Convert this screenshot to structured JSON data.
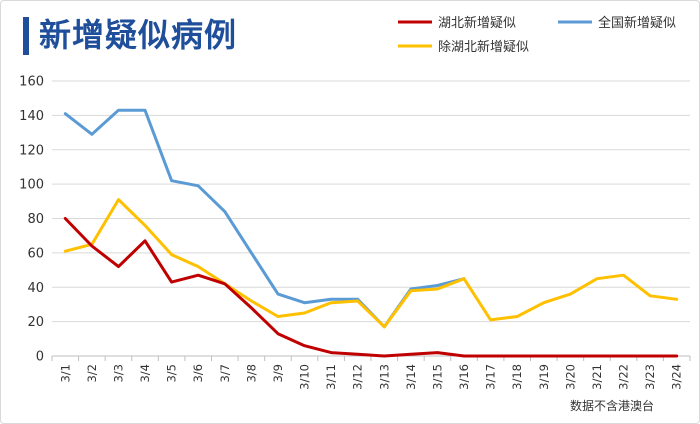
{
  "chart_data": {
    "type": "line",
    "title": "新增疑似病例",
    "note": "数据不含港澳台",
    "ylim": [
      0,
      160
    ],
    "yticks": [
      "0",
      "20",
      "40",
      "60",
      "80",
      "100",
      "120",
      "140",
      "160"
    ],
    "categories": [
      "3/1",
      "3/2",
      "3/3",
      "3/4",
      "3/5",
      "3/6",
      "3/7",
      "3/8",
      "3/9",
      "3/10",
      "3/11",
      "3/12",
      "3/13",
      "3/14",
      "3/15",
      "3/16",
      "3/17",
      "3/18",
      "3/19",
      "3/20",
      "3/21",
      "3/22",
      "3/23",
      "3/24"
    ],
    "legend_position": "top-right",
    "series": [
      {
        "name": "湖北新增疑似",
        "color": "#c00000",
        "values": [
          80,
          64,
          52,
          67,
          43,
          47,
          42,
          28,
          13,
          6,
          2,
          1,
          0,
          1,
          2,
          0,
          0,
          0,
          0,
          0,
          0,
          0,
          0,
          0
        ]
      },
      {
        "name": "全国新增疑似",
        "color": "#5b9bd5",
        "values": [
          141,
          129,
          143,
          143,
          102,
          99,
          84,
          60,
          36,
          31,
          33,
          33,
          17,
          39,
          41,
          45,
          null,
          null,
          null,
          null,
          null,
          null,
          null,
          null
        ]
      },
      {
        "name": "除湖北新增疑似",
        "color": "#ffc000",
        "values": [
          61,
          65,
          91,
          76,
          59,
          52,
          42,
          32,
          23,
          25,
          31,
          32,
          17,
          38,
          39,
          45,
          21,
          23,
          31,
          36,
          45,
          47,
          35,
          33
        ]
      }
    ]
  }
}
